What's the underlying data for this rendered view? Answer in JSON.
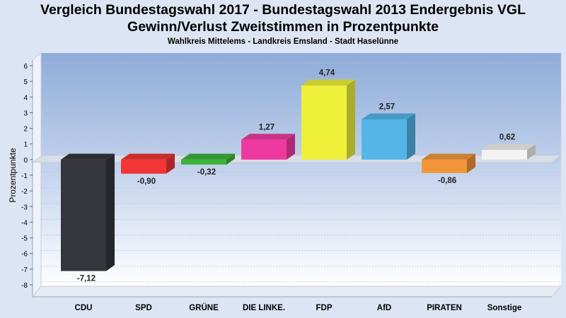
{
  "header": {
    "title_line1": "Vergleich Bundestagswahl 2017 - Bundestagswahl 2013 Endergebnis VGL",
    "title_line2": "Gewinn/Verlust Zweitstimmen in Prozentpunkte",
    "subtitle": "Wahlkreis Mittelems - Landkreis Emsland - Stadt Haselünne"
  },
  "chart_data": {
    "type": "bar",
    "title": "Vergleich Bundestagswahl 2017 - Bundestagswahl 2013 Endergebnis VGL Gewinn/Verlust Zweitstimmen in Prozentpunkte",
    "subtitle": "Wahlkreis Mittelems - Landkreis Emsland - Stadt Haselünne",
    "xlabel": "",
    "ylabel": "Prozentpunkte",
    "categories": [
      "CDU",
      "SPD",
      "GRÜNE",
      "DIE LINKE.",
      "FDP",
      "AfD",
      "PIRATEN",
      "Sonstige"
    ],
    "values": [
      -7.12,
      -0.9,
      -0.32,
      1.27,
      4.74,
      2.57,
      -0.86,
      0.62
    ],
    "value_labels": [
      "-7,12",
      "-0,90",
      "-0,32",
      "1,27",
      "4,74",
      "2,57",
      "-0,86",
      "0,62"
    ],
    "colors": [
      "#34363b",
      "#f23535",
      "#3cb43c",
      "#ee3aa0",
      "#eef03a",
      "#54b5e6",
      "#f2953a",
      "#f2f2f2"
    ],
    "ylim": [
      -8,
      6
    ],
    "yticks": [
      "6",
      "5",
      "4",
      "3",
      "2",
      "1",
      "0",
      "-1",
      "-2",
      "-3",
      "-4",
      "-5",
      "-6",
      "-7",
      "-8"
    ],
    "grid": true,
    "legend": "none"
  }
}
